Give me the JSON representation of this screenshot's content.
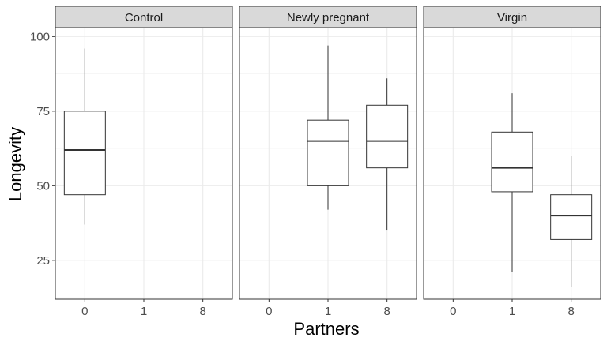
{
  "chart_data": {
    "type": "boxplot",
    "xlabel": "Partners",
    "ylabel": "Longevity",
    "x_categories": [
      "0",
      "1",
      "8"
    ],
    "ylim": [
      12,
      103
    ],
    "yticks": [
      25,
      50,
      75,
      100
    ],
    "grid": true,
    "facets": [
      {
        "name": "Control",
        "boxes": [
          {
            "x": "0",
            "min": 37,
            "q1": 47,
            "median": 62,
            "q3": 75,
            "max": 96
          }
        ]
      },
      {
        "name": "Newly pregnant",
        "boxes": [
          {
            "x": "1",
            "min": 42,
            "q1": 50,
            "median": 65,
            "q3": 72,
            "max": 97
          },
          {
            "x": "8",
            "min": 35,
            "q1": 56,
            "median": 65,
            "q3": 77,
            "max": 86
          }
        ]
      },
      {
        "name": "Virgin",
        "boxes": [
          {
            "x": "1",
            "min": 21,
            "q1": 48,
            "median": 56,
            "q3": 68,
            "max": 81
          },
          {
            "x": "8",
            "min": 16,
            "q1": 32,
            "median": 40,
            "q3": 47,
            "max": 60
          }
        ]
      }
    ]
  }
}
